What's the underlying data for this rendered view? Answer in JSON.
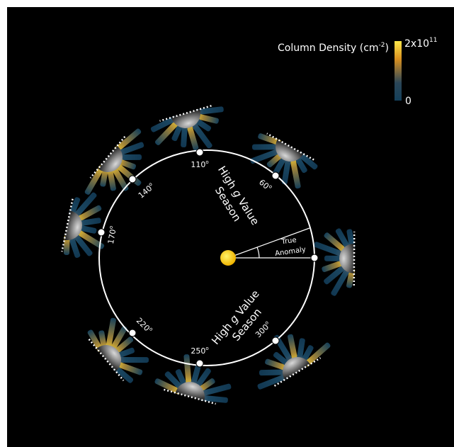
{
  "colorbar": {
    "title": "Column Density (cm",
    "title_sup": "-2",
    "title_end": ")",
    "max": "2x10",
    "max_sup": "11",
    "min": "0"
  },
  "orbit_labels": [
    "60",
    "110",
    "140",
    "170",
    "220",
    "250",
    "300"
  ],
  "degree_mark": "o",
  "seasons": [
    {
      "line1": [
        "High ",
        "g",
        " Value"
      ],
      "line2": "Season"
    },
    {
      "line1": [
        "High ",
        "g",
        " Value"
      ],
      "line2": "Season"
    }
  ],
  "anomaly": [
    "True",
    "Anomaly"
  ]
}
